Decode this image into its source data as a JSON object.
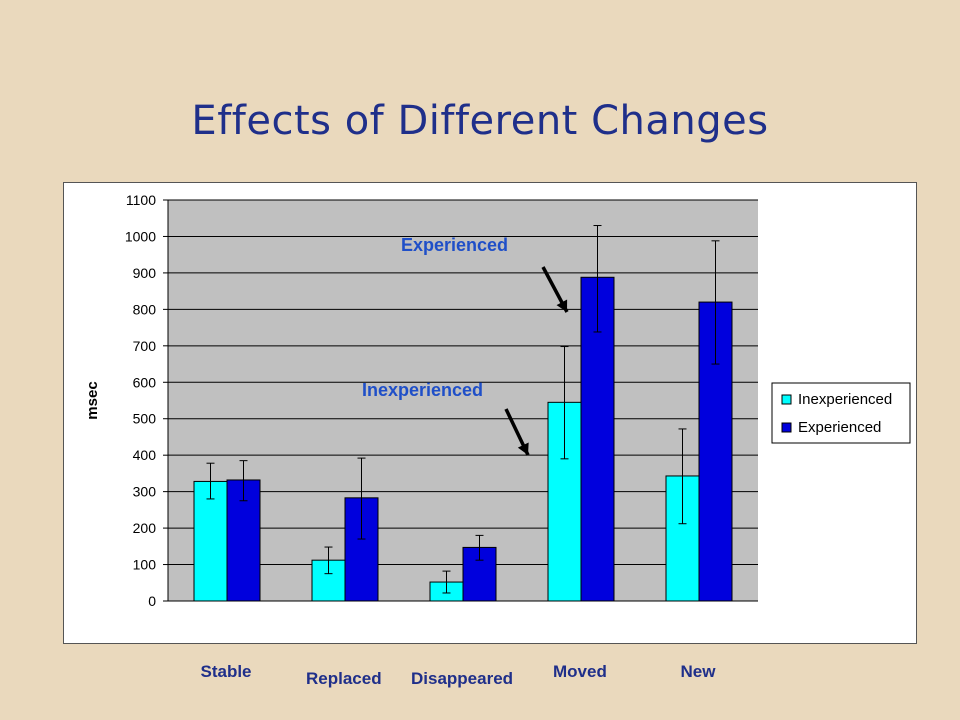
{
  "slide": {
    "title": "Effects of Different Changes"
  },
  "colors": {
    "background": "#ead9bd",
    "title": "#1f2f8a",
    "plot_background": "#c0c0c0",
    "inexperienced": "#00ffff",
    "experienced": "#0000dd",
    "annotation": "#1f4fc8"
  },
  "chart_data": {
    "type": "bar",
    "title": "",
    "xlabel": "",
    "ylabel": "msec",
    "ylim": [
      0,
      1100
    ],
    "yticks": [
      0,
      100,
      200,
      300,
      400,
      500,
      600,
      700,
      800,
      900,
      1000,
      1100
    ],
    "grid": true,
    "legend_position": "right",
    "categories": [
      "Stable",
      "Replaced",
      "Disappeared",
      "Moved",
      "New"
    ],
    "series": [
      {
        "name": "Inexperienced",
        "values": [
          328,
          112,
          52,
          545,
          343
        ],
        "error_low": [
          280,
          75,
          22,
          390,
          212
        ],
        "error_high": [
          378,
          148,
          82,
          698,
          472
        ]
      },
      {
        "name": "Experienced",
        "values": [
          332,
          283,
          147,
          888,
          820
        ],
        "error_low": [
          275,
          170,
          112,
          738,
          650
        ],
        "error_high": [
          385,
          392,
          180,
          1030,
          988
        ]
      }
    ],
    "annotations": [
      {
        "text": "Experienced",
        "points_to": "Moved / Experienced"
      },
      {
        "text": "Inexperienced",
        "points_to": "Moved / Inexperienced"
      }
    ]
  }
}
